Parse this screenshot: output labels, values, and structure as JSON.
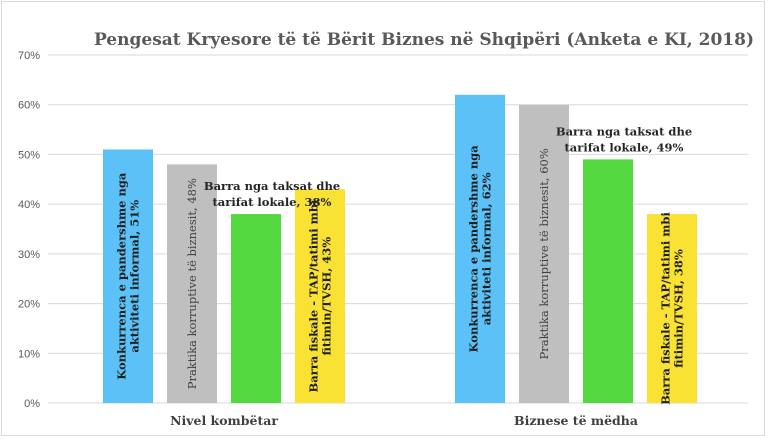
{
  "chart_data": {
    "type": "bar",
    "title": "Pengesat Kryesore të të Bërit Biznes në Shqipëri (Anketa e KI, 2018)",
    "xlabel": "",
    "ylabel": "",
    "ylim": [
      0,
      70
    ],
    "yticks": [
      "0%",
      "10%",
      "20%",
      "30%",
      "40%",
      "50%",
      "60%",
      "70%"
    ],
    "grid": true,
    "categories": [
      "Nivel kombëtar",
      "Biznese të mëdha"
    ],
    "series": [
      {
        "color": "#5bc1f7",
        "values": [
          51,
          62
        ],
        "labels": [
          [
            "Konkurrenca e pandershme nga",
            "aktiviteti informal, 51%"
          ],
          [
            "Konkurrenca e pandershme nga",
            "aktiviteti informal, 62%"
          ]
        ]
      },
      {
        "color": "#bfbfbf",
        "values": [
          48,
          60
        ],
        "labels": [
          [
            "Praktika korruptive të biznesit, 48%"
          ],
          [
            "Praktika korruptive të biznesit, 60%"
          ]
        ]
      },
      {
        "color": "#54d840",
        "values": [
          38,
          49
        ],
        "labels": [
          [
            "Barra nga taksat dhe",
            "tarifat lokale, 38%"
          ],
          [
            "Barra nga taksat dhe",
            "tarifat lokale, 49%"
          ]
        ]
      },
      {
        "color": "#f9e234",
        "values": [
          43,
          38
        ],
        "labels": [
          [
            "Barra fiskale - TAP/tatimi mbi",
            "fitimin/TVSH, 43%"
          ],
          [
            "Barra fiskale - TAP/tatimi mbi",
            "fitimin/TVSH, 38%"
          ]
        ]
      }
    ]
  }
}
